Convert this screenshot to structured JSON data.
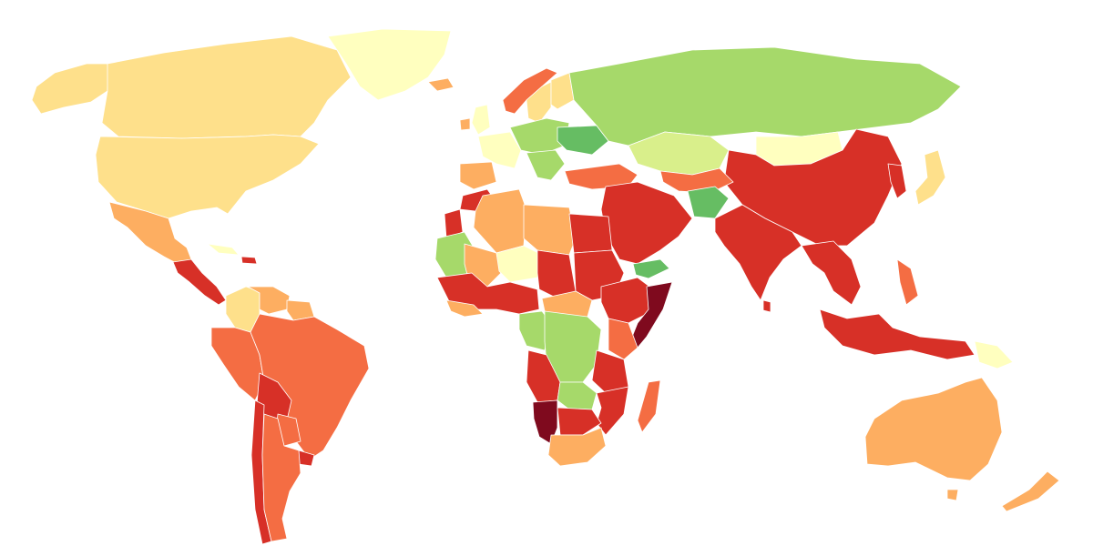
{
  "map": {
    "type": "choropleth",
    "projection": "world",
    "background": "#ffffff",
    "border_color": "#ffffff",
    "no_data_color": "#d9d9d9",
    "palette": [
      "#7f0a1e",
      "#d73027",
      "#f46d43",
      "#fdae61",
      "#fee08b",
      "#ffffbf",
      "#d9ef8b",
      "#a6d96a",
      "#66bd63"
    ]
  },
  "regions": [
    {
      "name": "greenland",
      "fill": "#ffffbf"
    },
    {
      "name": "canada",
      "fill": "#fee08b"
    },
    {
      "name": "usa",
      "fill": "#fee08b"
    },
    {
      "name": "alaska",
      "fill": "#fee08b"
    },
    {
      "name": "mexico",
      "fill": "#fdae61"
    },
    {
      "name": "central-america",
      "fill": "#d73027"
    },
    {
      "name": "cuba",
      "fill": "#ffffbf"
    },
    {
      "name": "hispaniola",
      "fill": "#d73027"
    },
    {
      "name": "colombia",
      "fill": "#fee08b"
    },
    {
      "name": "venezuela",
      "fill": "#fdae61"
    },
    {
      "name": "guianas",
      "fill": "#fdae61"
    },
    {
      "name": "peru-ecuador",
      "fill": "#f46d43"
    },
    {
      "name": "brazil",
      "fill": "#f46d43"
    },
    {
      "name": "bolivia",
      "fill": "#d73027"
    },
    {
      "name": "paraguay",
      "fill": "#f46d43"
    },
    {
      "name": "chile",
      "fill": "#d73027"
    },
    {
      "name": "argentina",
      "fill": "#f46d43"
    },
    {
      "name": "uruguay",
      "fill": "#d73027"
    },
    {
      "name": "iceland",
      "fill": "#fdae61"
    },
    {
      "name": "norway",
      "fill": "#f46d43"
    },
    {
      "name": "sweden",
      "fill": "#fee08b"
    },
    {
      "name": "finland",
      "fill": "#fee08b"
    },
    {
      "name": "uk",
      "fill": "#ffffbf"
    },
    {
      "name": "ireland",
      "fill": "#fdae61"
    },
    {
      "name": "western-europe",
      "fill": "#ffffbf"
    },
    {
      "name": "iberia",
      "fill": "#fdae61"
    },
    {
      "name": "central-europe",
      "fill": "#a6d96a"
    },
    {
      "name": "ukraine",
      "fill": "#66bd63"
    },
    {
      "name": "balkans",
      "fill": "#a6d96a"
    },
    {
      "name": "turkey",
      "fill": "#f46d43"
    },
    {
      "name": "russia",
      "fill": "#a6d96a"
    },
    {
      "name": "kazakhstan",
      "fill": "#d9ef8b"
    },
    {
      "name": "mongolia",
      "fill": "#ffffbf"
    },
    {
      "name": "china",
      "fill": "#d73027"
    },
    {
      "name": "korea",
      "fill": "#d73027"
    },
    {
      "name": "japan",
      "fill": "#fee08b"
    },
    {
      "name": "central-asia",
      "fill": "#f46d43"
    },
    {
      "name": "afghanistan",
      "fill": "#66bd63"
    },
    {
      "name": "middle-east",
      "fill": "#d73027"
    },
    {
      "name": "yemen",
      "fill": "#66bd63"
    },
    {
      "name": "india",
      "fill": "#d73027"
    },
    {
      "name": "sri-lanka",
      "fill": "#d73027"
    },
    {
      "name": "southeast-asia",
      "fill": "#d73027"
    },
    {
      "name": "philippines",
      "fill": "#f46d43"
    },
    {
      "name": "indonesia",
      "fill": "#d73027"
    },
    {
      "name": "papua-new-guinea",
      "fill": "#ffffbf"
    },
    {
      "name": "australia",
      "fill": "#fdae61"
    },
    {
      "name": "tasmania",
      "fill": "#fdae61"
    },
    {
      "name": "new-zealand",
      "fill": "#fdae61"
    },
    {
      "name": "morocco",
      "fill": "#d73027"
    },
    {
      "name": "western-sahara",
      "fill": "#d73027"
    },
    {
      "name": "algeria",
      "fill": "#fdae61"
    },
    {
      "name": "libya",
      "fill": "#fdae61"
    },
    {
      "name": "egypt",
      "fill": "#d73027"
    },
    {
      "name": "mauritania",
      "fill": "#a6d96a"
    },
    {
      "name": "mali",
      "fill": "#fdae61"
    },
    {
      "name": "niger",
      "fill": "#ffffbf"
    },
    {
      "name": "chad",
      "fill": "#d73027"
    },
    {
      "name": "sudan",
      "fill": "#d73027"
    },
    {
      "name": "west-africa",
      "fill": "#d73027"
    },
    {
      "name": "guinea-coast",
      "fill": "#fdae61"
    },
    {
      "name": "central-african-republic",
      "fill": "#fdae61"
    },
    {
      "name": "ethiopia-horn",
      "fill": "#d73027"
    },
    {
      "name": "somalia",
      "fill": "#7f0a1e"
    },
    {
      "name": "kenya",
      "fill": "#f46d43"
    },
    {
      "name": "gabon-congo",
      "fill": "#a6d96a"
    },
    {
      "name": "dr-congo",
      "fill": "#a6d96a"
    },
    {
      "name": "tanzania",
      "fill": "#d73027"
    },
    {
      "name": "angola",
      "fill": "#d73027"
    },
    {
      "name": "zambia",
      "fill": "#a6d96a"
    },
    {
      "name": "mozambique",
      "fill": "#d73027"
    },
    {
      "name": "namibia",
      "fill": "#7f0a1e"
    },
    {
      "name": "botswana-zimbabwe",
      "fill": "#d73027"
    },
    {
      "name": "south-africa",
      "fill": "#fdae61"
    },
    {
      "name": "madagascar",
      "fill": "#f46d43"
    }
  ]
}
